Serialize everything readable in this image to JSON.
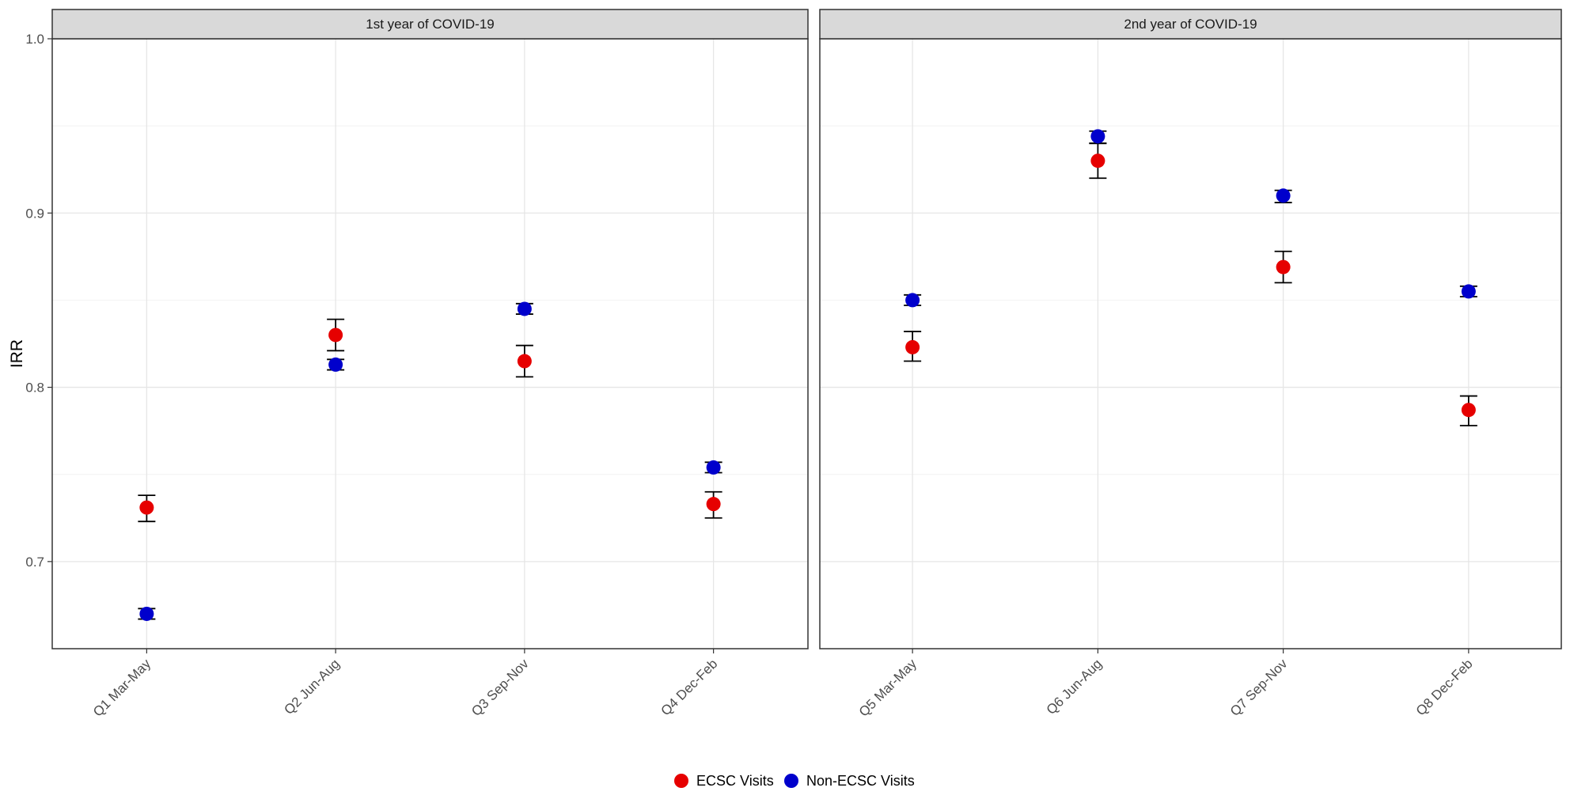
{
  "chart_data": {
    "type": "scatter",
    "ylabel": "IRR",
    "xlabel": "",
    "ylim": [
      0.65,
      1.0
    ],
    "yticks": [
      0.7,
      0.8,
      0.9,
      1.0
    ],
    "ytick_labels": [
      "0.7",
      "0.8",
      "0.9",
      "1.0"
    ],
    "grid": true,
    "legend_position": "bottom",
    "series": [
      {
        "name": "ECSC Visits",
        "color": "#e60000"
      },
      {
        "name": "Non-ECSC Visits",
        "color": "#0000cc"
      }
    ],
    "facets": [
      {
        "title": "1st year of COVID-19",
        "categories": [
          "Q1 Mar-May",
          "Q2 Jun-Aug",
          "Q3 Sep-Nov",
          "Q4 Dec-Feb"
        ],
        "series": [
          {
            "name": "ECSC Visits",
            "values": [
              0.731,
              0.83,
              0.815,
              0.733
            ],
            "lower": [
              0.723,
              0.821,
              0.806,
              0.725
            ],
            "upper": [
              0.738,
              0.839,
              0.824,
              0.74
            ]
          },
          {
            "name": "Non-ECSC Visits",
            "values": [
              0.67,
              0.813,
              0.845,
              0.754
            ],
            "lower": [
              0.667,
              0.81,
              0.842,
              0.751
            ],
            "upper": [
              0.673,
              0.816,
              0.848,
              0.757
            ]
          }
        ]
      },
      {
        "title": "2nd year of COVID-19",
        "categories": [
          "Q5 Mar-May",
          "Q6 Jun-Aug",
          "Q7 Sep-Nov",
          "Q8 Dec-Feb"
        ],
        "series": [
          {
            "name": "ECSC Visits",
            "values": [
              0.823,
              0.93,
              0.869,
              0.787
            ],
            "lower": [
              0.815,
              0.92,
              0.86,
              0.778
            ],
            "upper": [
              0.832,
              0.94,
              0.878,
              0.795
            ]
          },
          {
            "name": "Non-ECSC Visits",
            "values": [
              0.85,
              0.944,
              0.91,
              0.855
            ],
            "lower": [
              0.847,
              0.94,
              0.906,
              0.852
            ],
            "upper": [
              0.853,
              0.947,
              0.913,
              0.858
            ]
          }
        ]
      }
    ]
  }
}
